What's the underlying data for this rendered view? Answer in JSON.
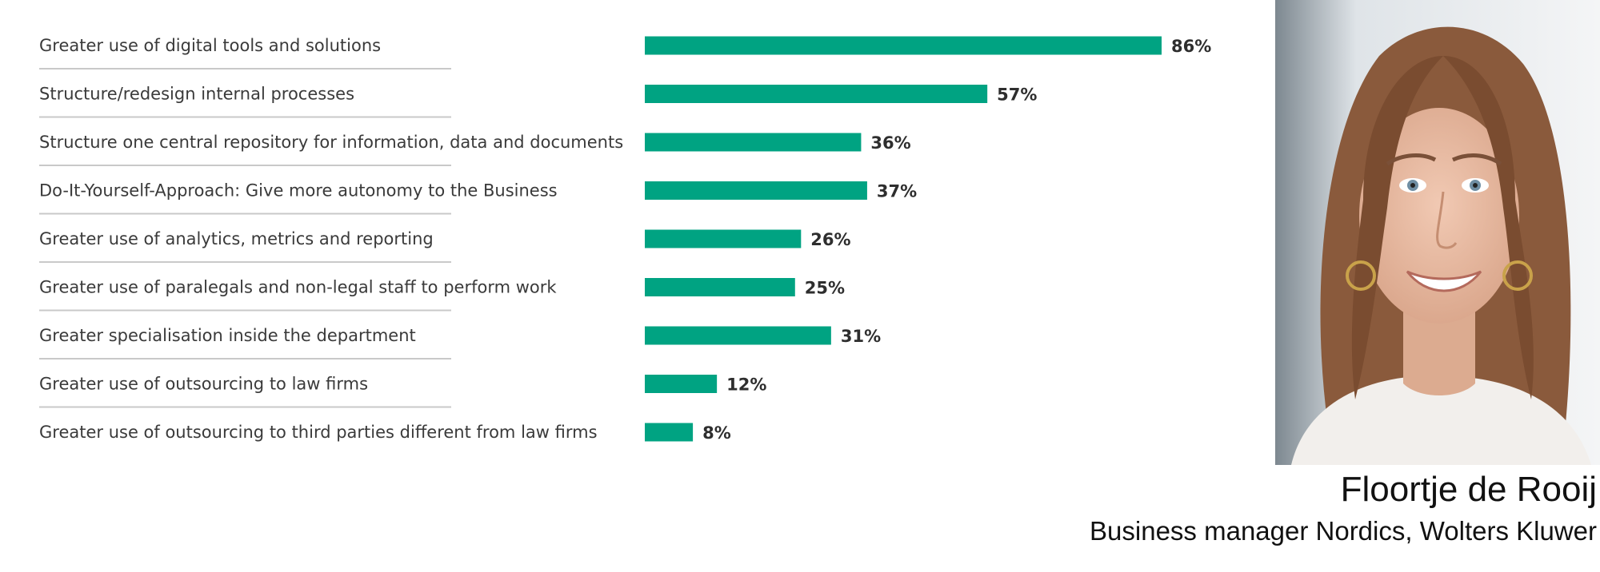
{
  "chart_data": {
    "type": "bar",
    "orientation": "horizontal",
    "title": "",
    "xlabel": "",
    "ylabel": "",
    "xlim": [
      0,
      100
    ],
    "grid": false,
    "legend": "none",
    "bar_color": "#00a382",
    "categories": [
      "Greater use of digital tools and solutions",
      "Structure/redesign internal processes",
      "Structure one central repository for information, data and documents",
      "Do-It-Yourself-Approach: Give more autonomy to the Business",
      "Greater use of analytics, metrics and reporting",
      "Greater use of paralegals and non-legal staff to perform work",
      "Greater specialisation inside the department",
      "Greater use of outsourcing to law firms",
      "Greater use of outsourcing to third parties different from law firms"
    ],
    "values": [
      86,
      57,
      36,
      37,
      26,
      25,
      31,
      12,
      8
    ],
    "value_labels": [
      "86%",
      "57%",
      "36%",
      "37%",
      "26%",
      "25%",
      "31%",
      "12%",
      "8%"
    ]
  },
  "person": {
    "name": "Floortje de Rooij",
    "role": "Business manager Nordics, Wolters Kluwer"
  }
}
